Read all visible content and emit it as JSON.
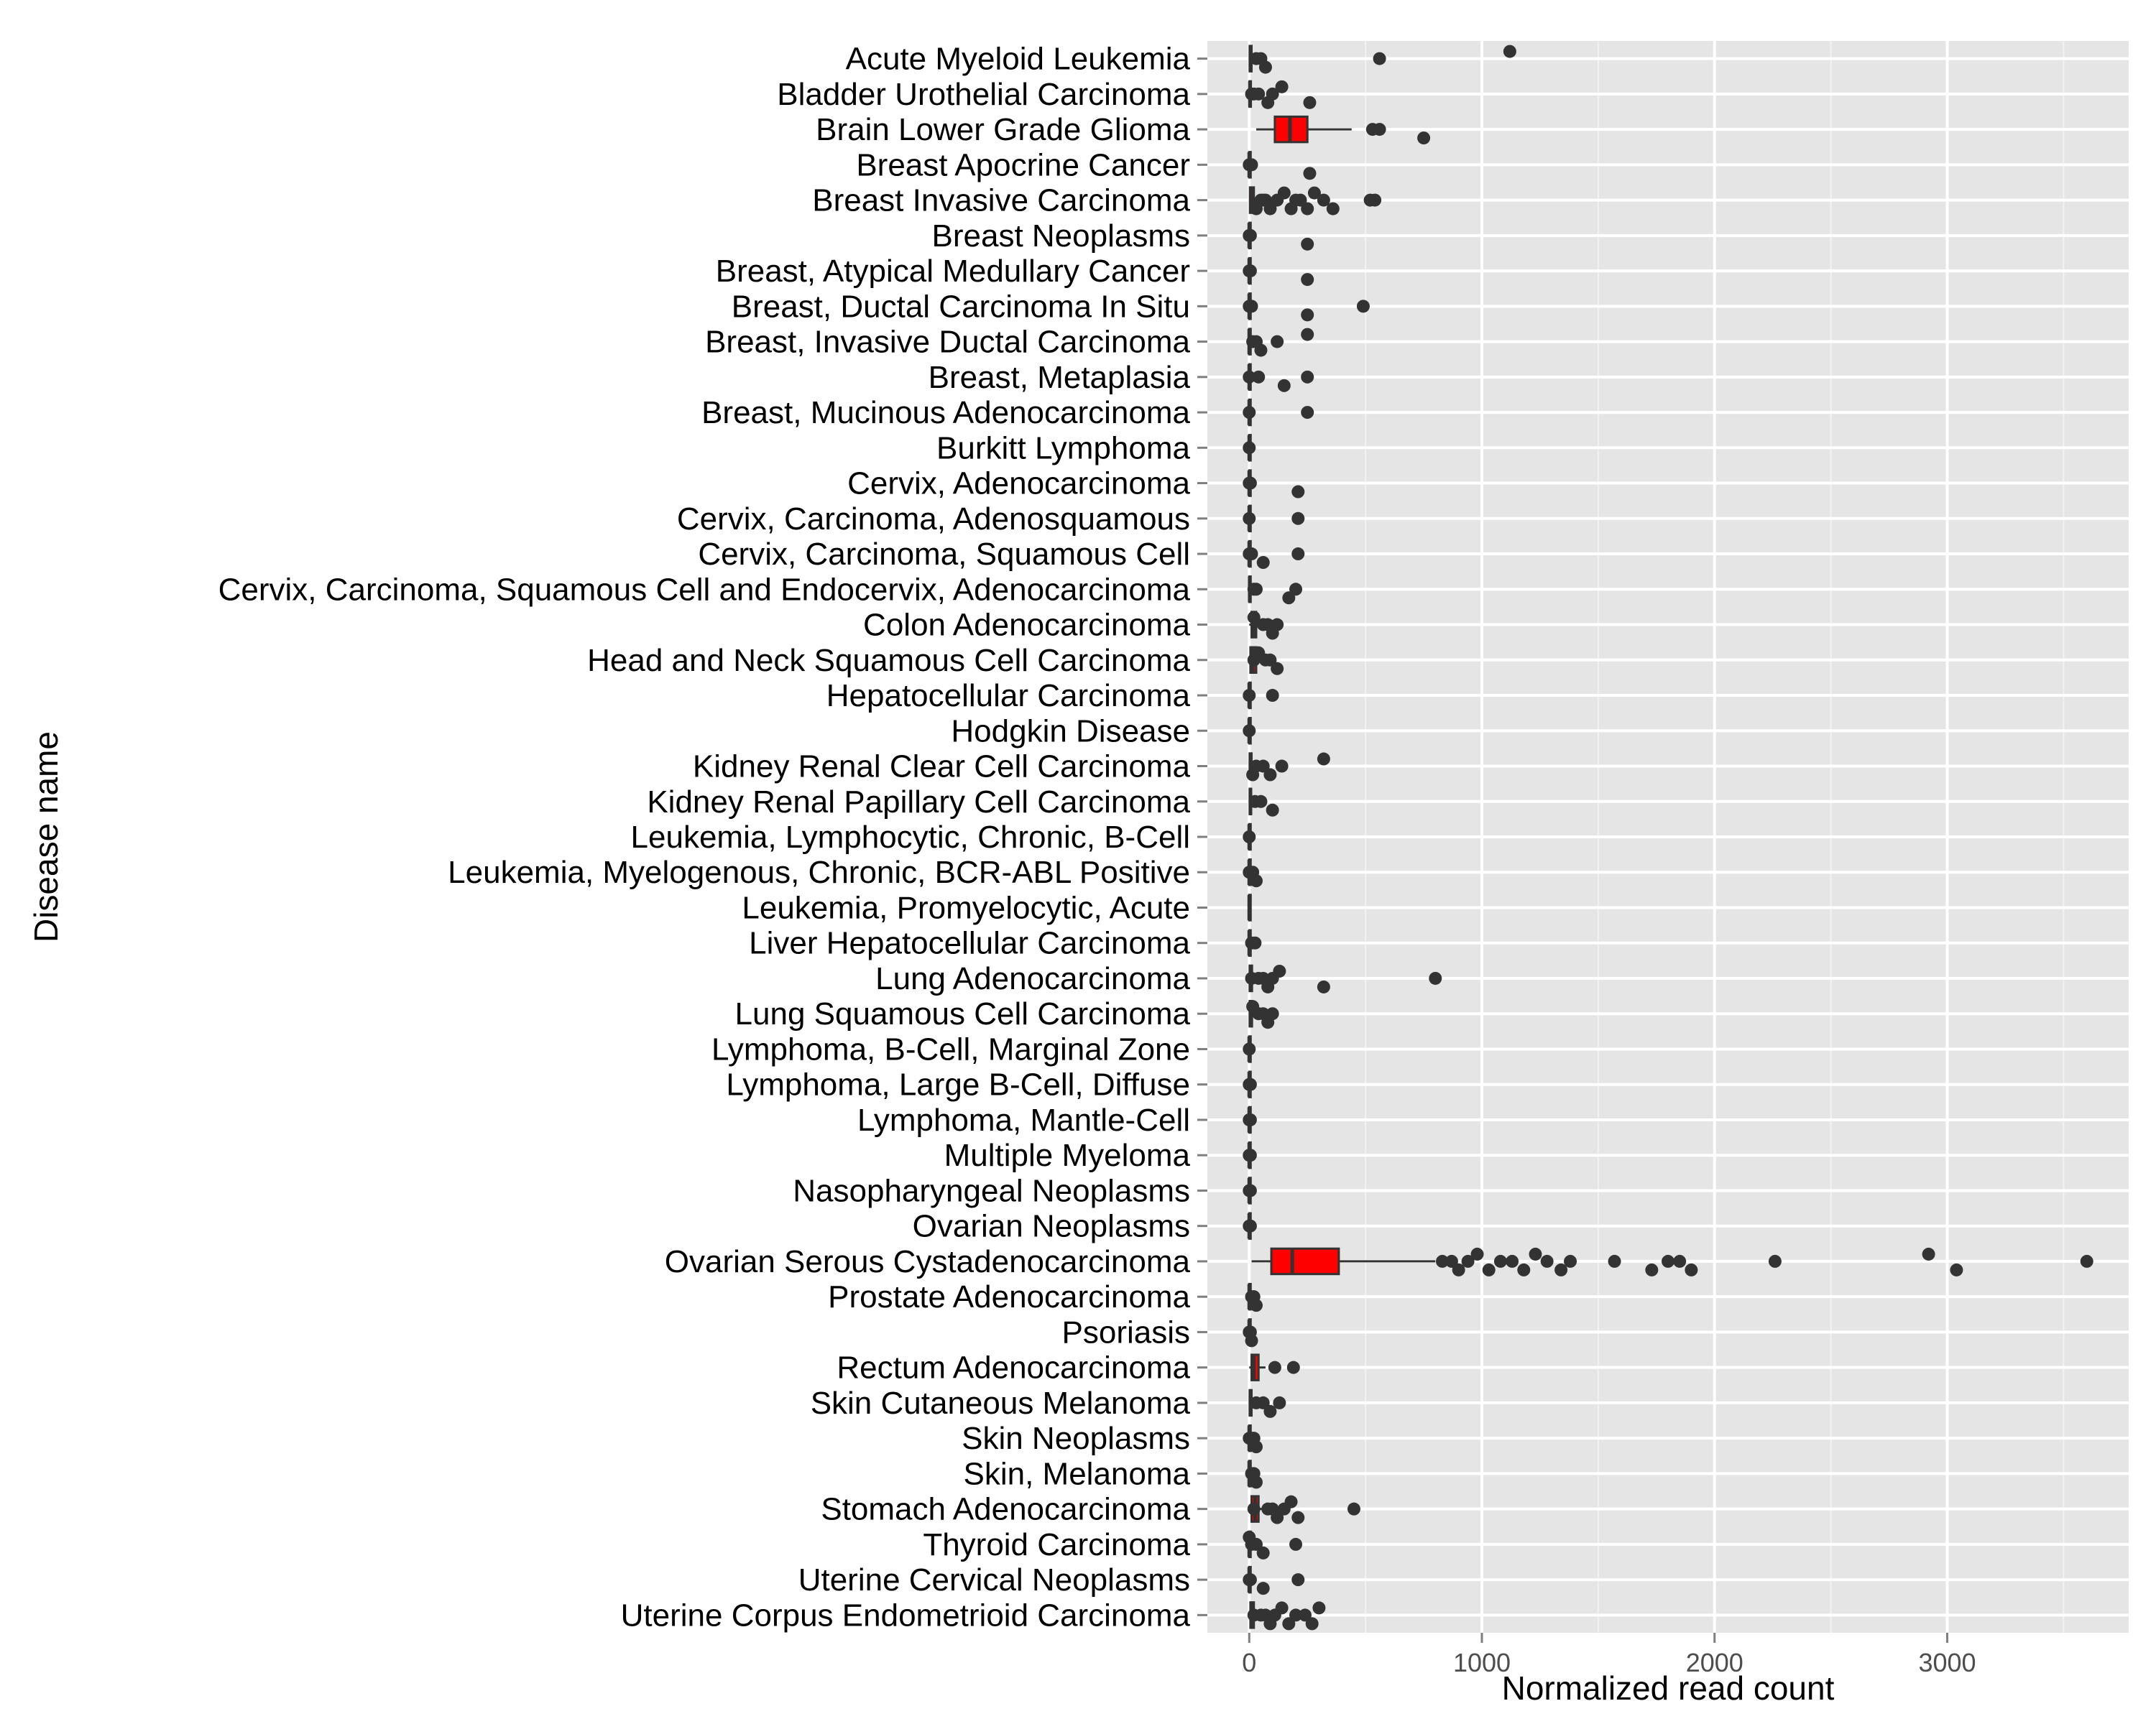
{
  "chart_data": {
    "type": "boxplot",
    "orientation": "horizontal",
    "xlabel": "Normalized read count",
    "ylabel": "Disease name",
    "xlim": [
      -180,
      3780
    ],
    "x_ticks": [
      0,
      1000,
      2000,
      3000
    ],
    "x_tick_labels": [
      "0",
      "1000",
      "2000",
      "3000"
    ],
    "grid": true,
    "legend": "none",
    "box_fill": "#ff0000",
    "panel_color": "#e5e5e5",
    "point_color": "#333333",
    "categories": [
      "Acute Myeloid Leukemia",
      "Bladder Urothelial Carcinoma",
      "Brain Lower Grade Glioma",
      "Breast Apocrine Cancer",
      "Breast Invasive Carcinoma",
      "Breast Neoplasms",
      "Breast, Atypical Medullary Cancer",
      "Breast, Ductal Carcinoma In Situ",
      "Breast, Invasive Ductal Carcinoma",
      "Breast, Metaplasia",
      "Breast, Mucinous Adenocarcinoma",
      "Burkitt Lymphoma",
      "Cervix, Adenocarcinoma",
      "Cervix, Carcinoma, Adenosquamous",
      "Cervix, Carcinoma, Squamous Cell",
      "Cervix, Carcinoma, Squamous Cell and Endocervix, Adenocarcinoma",
      "Colon Adenocarcinoma",
      "Head and Neck Squamous Cell Carcinoma",
      "Hepatocellular Carcinoma",
      "Hodgkin Disease",
      "Kidney Renal Clear Cell Carcinoma",
      "Kidney Renal Papillary Cell Carcinoma",
      "Leukemia, Lymphocytic, Chronic, B-Cell",
      "Leukemia, Myelogenous, Chronic, BCR-ABL Positive",
      "Leukemia, Promyelocytic, Acute",
      "Liver Hepatocellular Carcinoma",
      "Lung Adenocarcinoma",
      "Lung Squamous Cell Carcinoma",
      "Lymphoma, B-Cell, Marginal Zone",
      "Lymphoma, Large B-Cell, Diffuse",
      "Lymphoma, Mantle-Cell",
      "Multiple Myeloma",
      "Nasopharyngeal Neoplasms",
      "Ovarian Neoplasms",
      "Ovarian Serous Cystadenocarcinoma",
      "Prostate Adenocarcinoma",
      "Psoriasis",
      "Rectum Adenocarcinoma",
      "Skin Cutaneous Melanoma",
      "Skin Neoplasms",
      "Skin, Melanoma",
      "Stomach Adenocarcinoma",
      "Thyroid Carcinoma",
      "Uterine Cervical Neoplasms",
      "Uterine Corpus Endometrioid Carcinoma"
    ],
    "boxes": [
      {
        "min": 0,
        "q1": 2,
        "median": 5,
        "q3": 10,
        "max": 25,
        "outliers": [
          30,
          50,
          70,
          560,
          1120
        ]
      },
      {
        "min": 0,
        "q1": 1,
        "median": 3,
        "q3": 6,
        "max": 12,
        "outliers": [
          20,
          40,
          80,
          100,
          140,
          260,
          10
        ]
      },
      {
        "min": 30,
        "q1": 110,
        "median": 175,
        "q3": 250,
        "max": 440,
        "outliers": [
          530,
          560,
          750
        ]
      },
      {
        "min": 0,
        "q1": 0,
        "median": 0,
        "q3": 0,
        "max": 0,
        "outliers": [
          0,
          10,
          260
        ]
      },
      {
        "min": 0,
        "q1": 3,
        "median": 8,
        "q3": 20,
        "max": 45,
        "outliers": [
          50,
          70,
          90,
          120,
          150,
          180,
          200,
          220,
          250,
          280,
          320,
          360,
          520,
          540,
          30,
          60
        ]
      },
      {
        "min": 0,
        "q1": 0,
        "median": 0,
        "q3": 0,
        "max": 0,
        "outliers": [
          0,
          5,
          250
        ]
      },
      {
        "min": 0,
        "q1": 0,
        "median": 0,
        "q3": 0,
        "max": 0,
        "outliers": [
          0,
          5,
          250
        ]
      },
      {
        "min": 0,
        "q1": 0,
        "median": 0,
        "q3": 0,
        "max": 0,
        "outliers": [
          0,
          10,
          250,
          490
        ]
      },
      {
        "min": 0,
        "q1": 0,
        "median": 0,
        "q3": 5,
        "max": 10,
        "outliers": [
          15,
          30,
          50,
          120,
          250
        ]
      },
      {
        "min": 0,
        "q1": 0,
        "median": 0,
        "q3": 0,
        "max": 0,
        "outliers": [
          0,
          40,
          150,
          250
        ]
      },
      {
        "min": 0,
        "q1": 0,
        "median": 0,
        "q3": 0,
        "max": 0,
        "outliers": [
          0,
          250
        ]
      },
      {
        "min": 0,
        "q1": 0,
        "median": 0,
        "q3": 0,
        "max": 0,
        "outliers": [
          0
        ]
      },
      {
        "min": 0,
        "q1": 0,
        "median": 0,
        "q3": 0,
        "max": 0,
        "outliers": [
          0,
          5,
          210
        ]
      },
      {
        "min": 0,
        "q1": 0,
        "median": 0,
        "q3": 0,
        "max": 0,
        "outliers": [
          0,
          210
        ]
      },
      {
        "min": 0,
        "q1": 0,
        "median": 0,
        "q3": 0,
        "max": 0,
        "outliers": [
          0,
          10,
          60,
          210
        ]
      },
      {
        "min": 0,
        "q1": 0,
        "median": 2,
        "q3": 6,
        "max": 12,
        "outliers": [
          20,
          30,
          170,
          200
        ]
      },
      {
        "min": 0,
        "q1": 10,
        "median": 20,
        "q3": 30,
        "max": 50,
        "outliers": [
          60,
          80,
          100,
          120,
          20
        ]
      },
      {
        "min": 0,
        "q1": 5,
        "median": 15,
        "q3": 30,
        "max": 60,
        "outliers": [
          70,
          90,
          120,
          20,
          40
        ]
      },
      {
        "min": 0,
        "q1": 0,
        "median": 0,
        "q3": 0,
        "max": 0,
        "outliers": [
          0,
          100
        ]
      },
      {
        "min": 0,
        "q1": 0,
        "median": 0,
        "q3": 0,
        "max": 0,
        "outliers": [
          0
        ]
      },
      {
        "min": 0,
        "q1": 2,
        "median": 5,
        "q3": 10,
        "max": 20,
        "outliers": [
          30,
          60,
          90,
          140,
          320,
          15
        ]
      },
      {
        "min": 0,
        "q1": 2,
        "median": 5,
        "q3": 8,
        "max": 15,
        "outliers": [
          25,
          50,
          100
        ]
      },
      {
        "min": 0,
        "q1": 0,
        "median": 0,
        "q3": 0,
        "max": 0,
        "outliers": [
          0
        ]
      },
      {
        "min": 0,
        "q1": 0,
        "median": 0,
        "q3": 0,
        "max": 0,
        "outliers": [
          0,
          15,
          30
        ]
      },
      {
        "min": 0,
        "q1": 0,
        "median": 0,
        "q3": 0,
        "max": 0,
        "outliers": []
      },
      {
        "min": 0,
        "q1": 0,
        "median": 0,
        "q3": 2,
        "max": 5,
        "outliers": [
          10,
          25
        ]
      },
      {
        "min": 0,
        "q1": 2,
        "median": 5,
        "q3": 12,
        "max": 25,
        "outliers": [
          40,
          60,
          80,
          100,
          130,
          320,
          800,
          10
        ]
      },
      {
        "min": 0,
        "q1": 2,
        "median": 5,
        "q3": 12,
        "max": 25,
        "outliers": [
          40,
          60,
          80,
          100,
          15
        ]
      },
      {
        "min": 0,
        "q1": 0,
        "median": 0,
        "q3": 0,
        "max": 0,
        "outliers": [
          0
        ]
      },
      {
        "min": 0,
        "q1": 0,
        "median": 0,
        "q3": 0,
        "max": 0,
        "outliers": [
          0,
          5
        ]
      },
      {
        "min": 0,
        "q1": 0,
        "median": 0,
        "q3": 0,
        "max": 0,
        "outliers": [
          0,
          5
        ]
      },
      {
        "min": 0,
        "q1": 0,
        "median": 0,
        "q3": 0,
        "max": 0,
        "outliers": [
          0,
          5
        ]
      },
      {
        "min": 0,
        "q1": 0,
        "median": 0,
        "q3": 0,
        "max": 0,
        "outliers": [
          0,
          5
        ]
      },
      {
        "min": 0,
        "q1": 0,
        "median": 0,
        "q3": 0,
        "max": 0,
        "outliers": [
          0,
          5
        ]
      },
      {
        "min": 10,
        "q1": 95,
        "median": 185,
        "q3": 385,
        "max": 800,
        "outliers": [
          830,
          870,
          900,
          940,
          980,
          1030,
          1080,
          1130,
          1180,
          1230,
          1280,
          1340,
          1380,
          1570,
          1730,
          1800,
          1850,
          1900,
          2260,
          2920,
          3040,
          3600
        ]
      },
      {
        "min": 0,
        "q1": 0,
        "median": 0,
        "q3": 2,
        "max": 5,
        "outliers": [
          10,
          20,
          30
        ]
      },
      {
        "min": 0,
        "q1": 0,
        "median": 0,
        "q3": 0,
        "max": 0,
        "outliers": [
          0,
          5,
          10
        ]
      },
      {
        "min": 0,
        "q1": 10,
        "median": 20,
        "q3": 40,
        "max": 70,
        "outliers": [
          110,
          190
        ]
      },
      {
        "min": 0,
        "q1": 2,
        "median": 5,
        "q3": 10,
        "max": 20,
        "outliers": [
          30,
          60,
          90,
          130
        ]
      },
      {
        "min": 0,
        "q1": 0,
        "median": 0,
        "q3": 2,
        "max": 5,
        "outliers": [
          10,
          20,
          30,
          0
        ]
      },
      {
        "min": 0,
        "q1": 0,
        "median": 0,
        "q3": 2,
        "max": 5,
        "outliers": [
          10,
          20,
          30
        ]
      },
      {
        "min": 0,
        "q1": 10,
        "median": 25,
        "q3": 40,
        "max": 70,
        "outliers": [
          80,
          100,
          120,
          150,
          180,
          210,
          450,
          20
        ]
      },
      {
        "min": 0,
        "q1": 0,
        "median": 0,
        "q3": 2,
        "max": 5,
        "outliers": [
          10,
          30,
          60,
          200,
          0
        ]
      },
      {
        "min": 0,
        "q1": 0,
        "median": 0,
        "q3": 0,
        "max": 0,
        "outliers": [
          0,
          5,
          60,
          210
        ]
      },
      {
        "min": 0,
        "q1": 5,
        "median": 10,
        "q3": 20,
        "max": 40,
        "outliers": [
          50,
          70,
          90,
          110,
          140,
          170,
          200,
          240,
          270,
          300,
          20
        ]
      }
    ]
  }
}
